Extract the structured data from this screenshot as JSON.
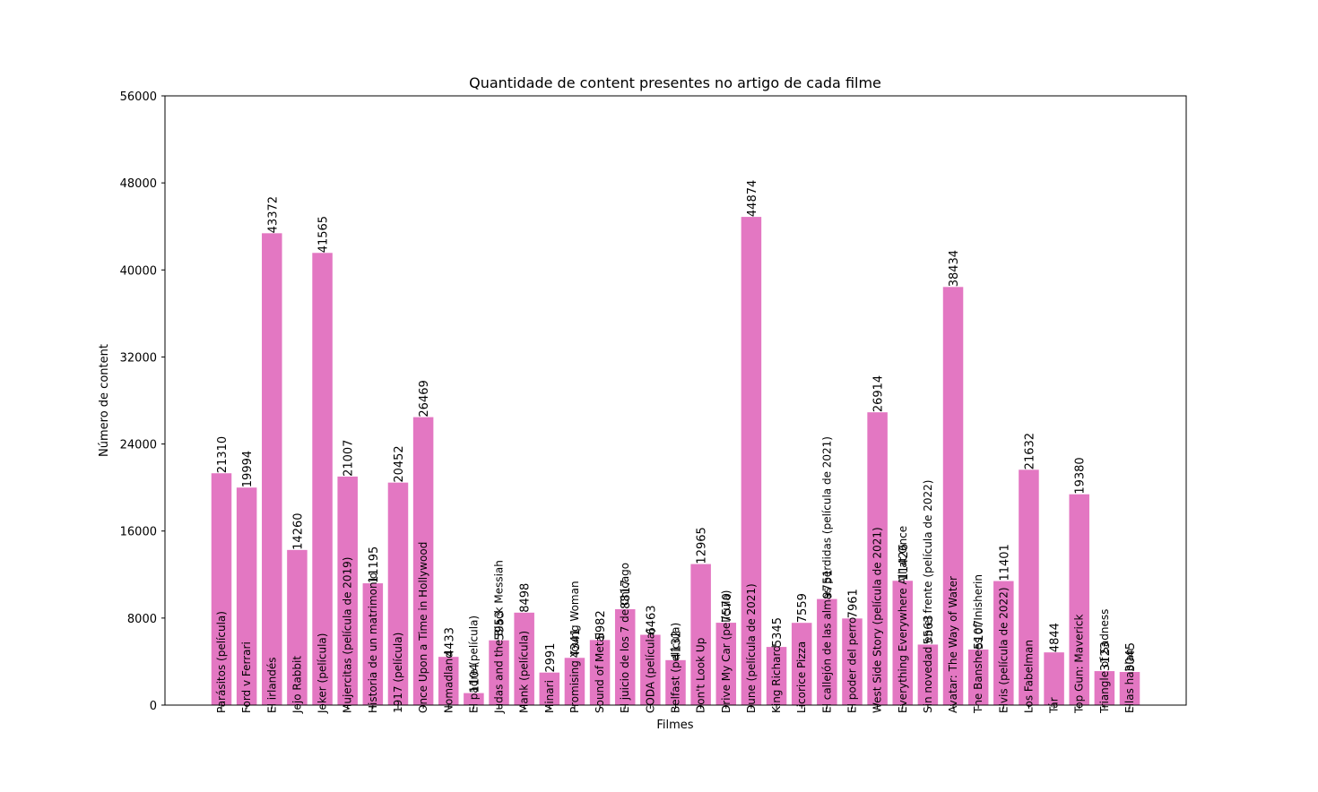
{
  "chart_data": {
    "type": "bar",
    "title": "Quantidade de content presentes no artigo de cada filme",
    "xlabel": "Filmes",
    "ylabel": "Número de content",
    "ylim": [
      0,
      56000
    ],
    "yticks": [
      0,
      8000,
      16000,
      24000,
      32000,
      40000,
      48000,
      56000
    ],
    "grid": false,
    "bar_color": "#e377c2",
    "categories": [
      "Parásitos (película)",
      "Ford v Ferrari",
      "El irlandés",
      "Jojo Rabbit",
      "Joker (película)",
      "Mujercitas (película de 2019)",
      "Historia de un matrimonio",
      "1917 (película)",
      "Once Upon a Time in Hollywood",
      "Nomadland",
      "El padre (película)",
      "Judas and the Black Messiah",
      "Mank (película)",
      "Minari",
      "Promising Young Woman",
      "Sound of Metal",
      "El juicio de los 7 de Chicago",
      "CODA (película)",
      "Belfast (película)",
      "Don't Look Up",
      "Drive My Car (película)",
      "Dune (película de 2021)",
      "King Richard",
      "Licorice Pizza",
      "El callejón de las almas perdidas (película de 2021)",
      "El poder del perro",
      "West Side Story (película de 2021)",
      "Everything Everywhere All at Once",
      "Sin novedad en el frente (película de 2022)",
      "Avatar: The Way of Water",
      "The Banshees of Inisherin",
      "Elvis (película de 2022)",
      "Los Fabelman",
      "Tár",
      "Top Gun: Maverick",
      "Triangle of Sadness",
      "Ellas hablan"
    ],
    "values": [
      21310,
      19994,
      43372,
      14260,
      41565,
      21007,
      11195,
      20452,
      26469,
      4433,
      1104,
      5953,
      8498,
      2991,
      4341,
      5982,
      8817,
      6463,
      4132,
      12965,
      7570,
      44874,
      5345,
      7559,
      9751,
      7961,
      26914,
      11426,
      5563,
      38434,
      5107,
      11401,
      21632,
      4844,
      19380,
      3123,
      3045
    ]
  }
}
